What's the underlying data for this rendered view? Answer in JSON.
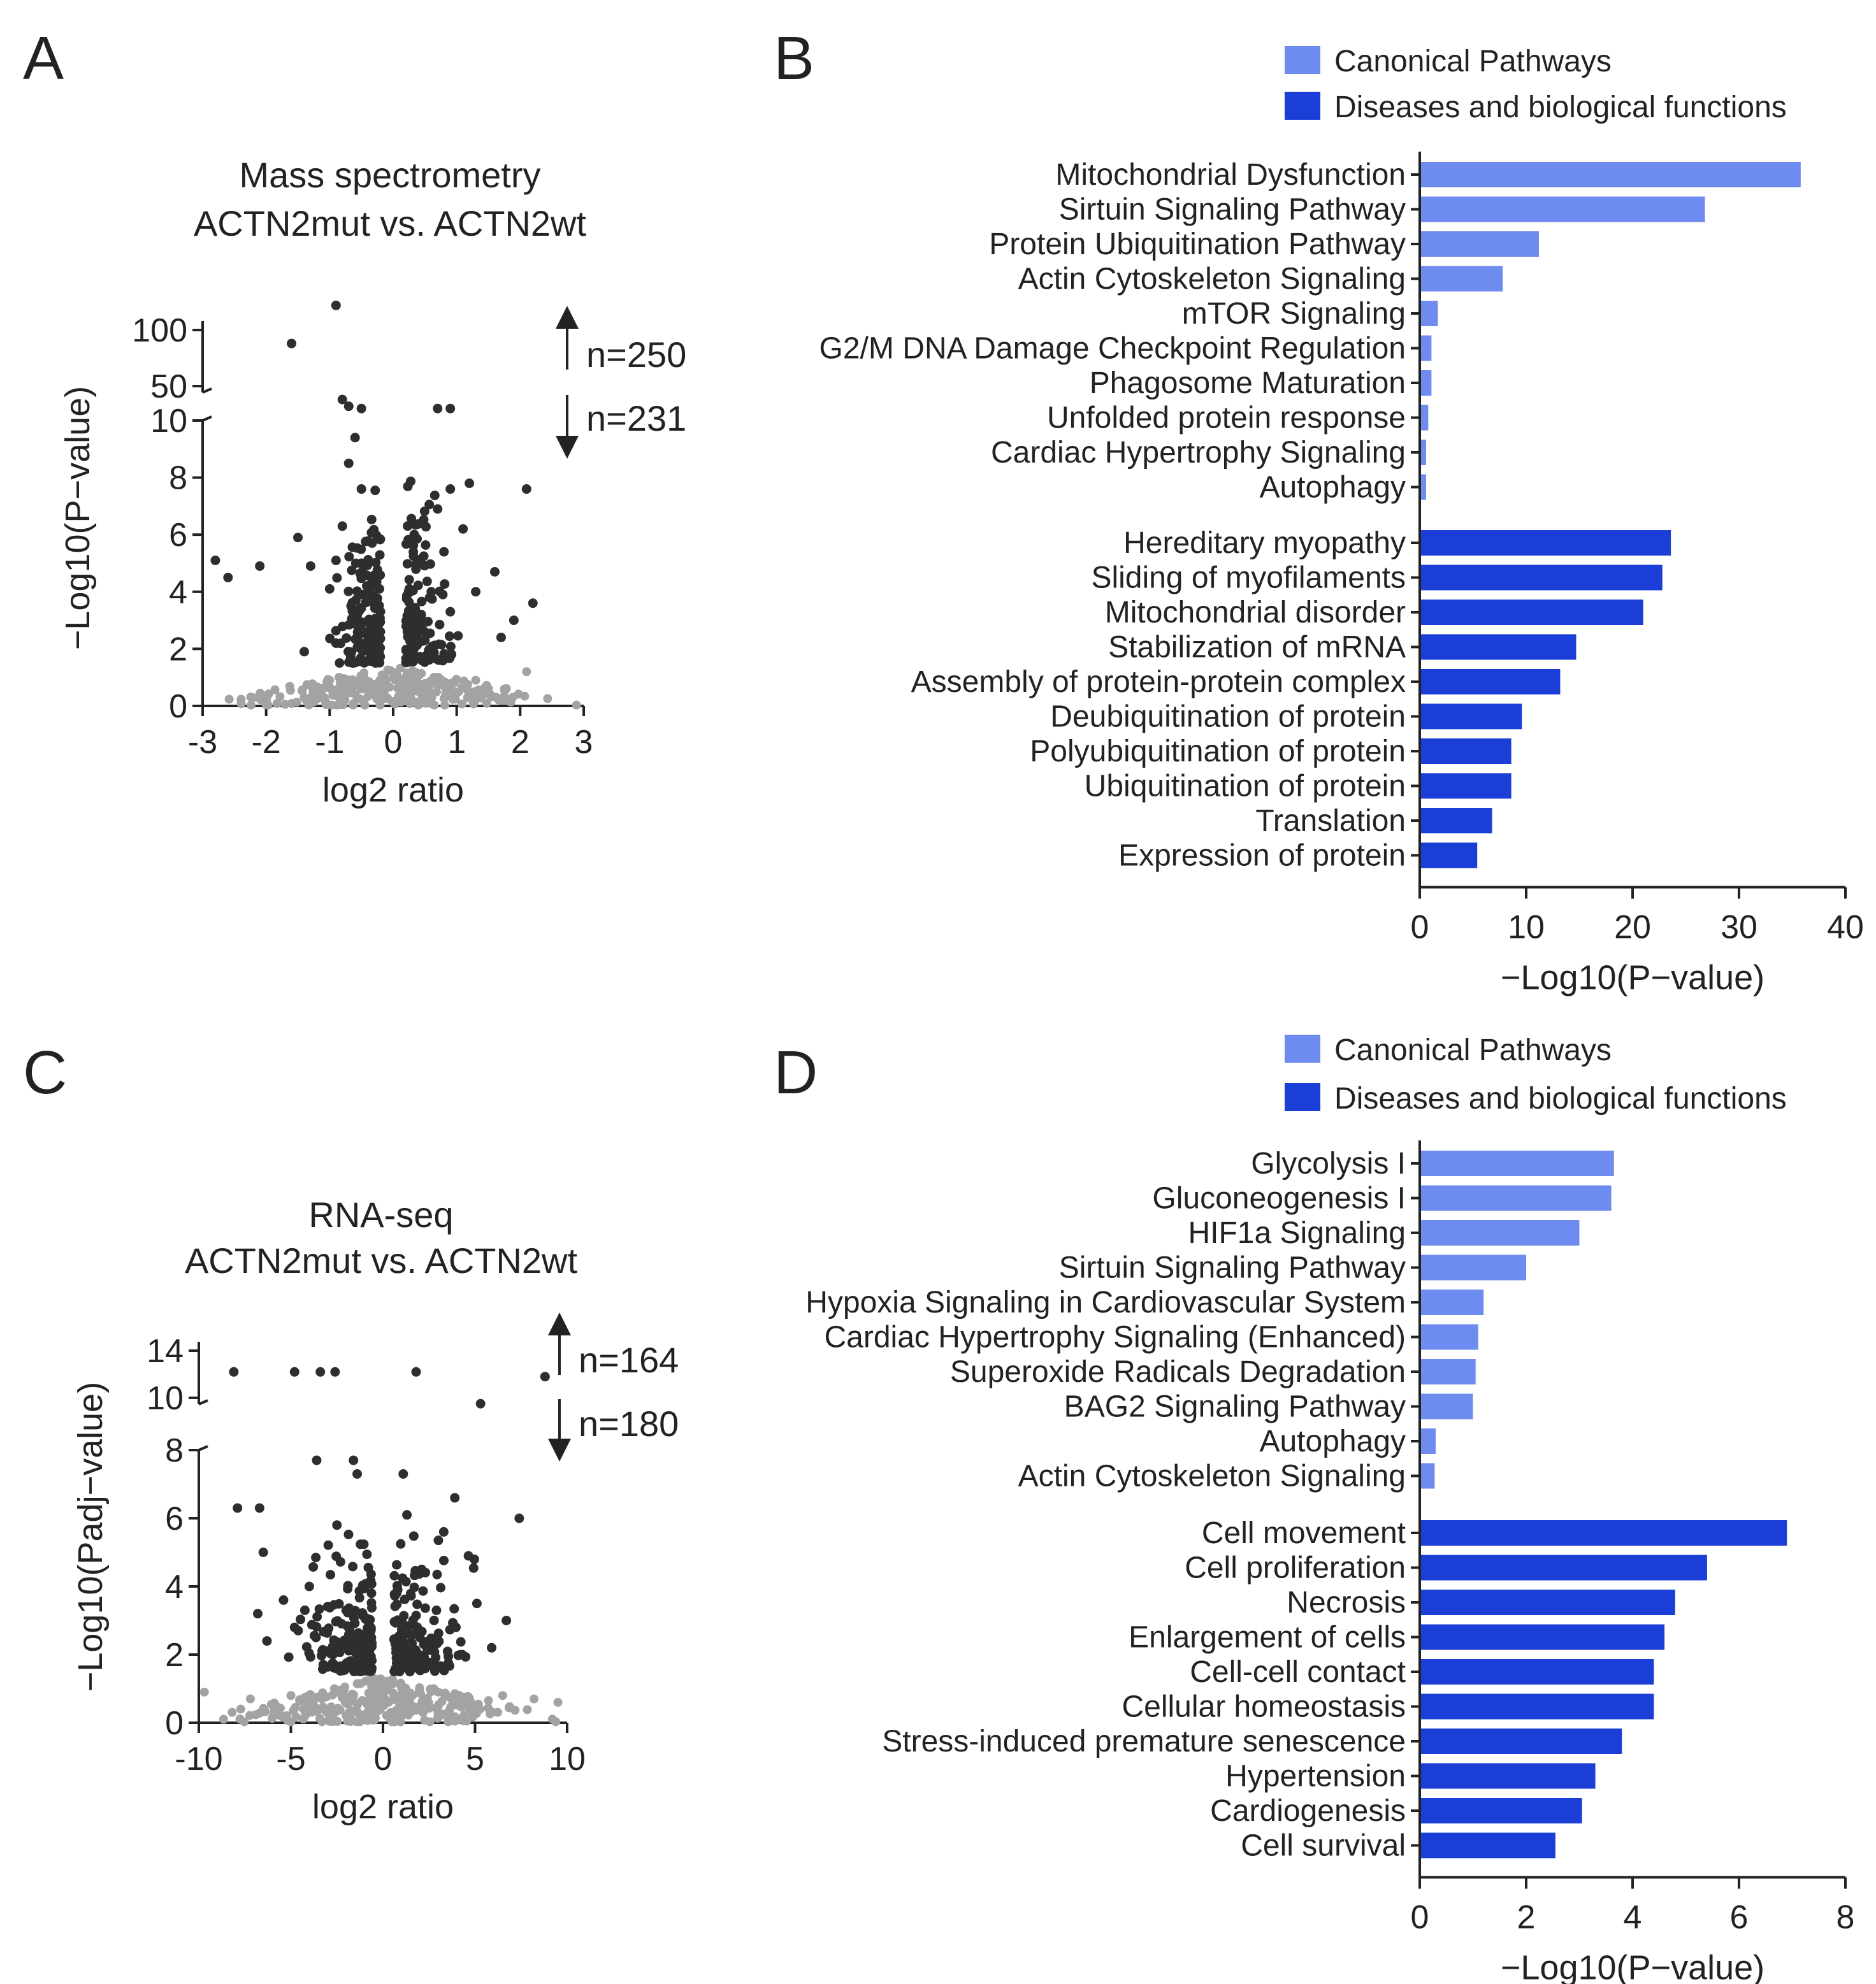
{
  "panels": {
    "A": {
      "letter": "A"
    },
    "B": {
      "letter": "B"
    },
    "C": {
      "letter": "C"
    },
    "D": {
      "letter": "D"
    }
  },
  "chart_data": [
    {
      "id": "A",
      "type": "scatter",
      "title": [
        "Mass spectrometry",
        "ACTN2mut vs. ACTN2wt"
      ],
      "xlabel": "log2 ratio",
      "ylabel": "−Log10(P−value)",
      "xlim": [
        -3,
        3
      ],
      "xticks": [
        "-3",
        "-2",
        "-1",
        "0",
        "1",
        "2",
        "3"
      ],
      "ylim_lower": [
        0,
        10
      ],
      "yticks_lower": [
        "0",
        "2",
        "4",
        "6",
        "8",
        "10"
      ],
      "yticks_upper": [
        "50",
        "100"
      ],
      "n_up": "n=250",
      "n_down": "n=231",
      "significant_points": [
        [
          -2.8,
          5.1
        ],
        [
          -2.6,
          4.5
        ],
        [
          -2.1,
          4.9
        ],
        [
          -1.5,
          5.9
        ],
        [
          -1.3,
          4.9
        ],
        [
          -1.4,
          1.9
        ],
        [
          -0.9,
          2.2
        ],
        [
          -0.8,
          6.3
        ],
        [
          -0.7,
          8.5
        ],
        [
          -0.6,
          9.4
        ],
        [
          -0.5,
          7.6
        ],
        [
          -0.5,
          5.0
        ],
        [
          -0.6,
          3.3
        ],
        [
          -0.4,
          2.6
        ],
        [
          0.5,
          2.3
        ],
        [
          0.6,
          4.0
        ],
        [
          0.7,
          6.9
        ],
        [
          0.9,
          7.6
        ],
        [
          0.8,
          5.4
        ],
        [
          1.1,
          6.2
        ],
        [
          1.3,
          4.0
        ],
        [
          1.2,
          7.8
        ],
        [
          1.6,
          4.7
        ],
        [
          1.7,
          2.4
        ],
        [
          1.9,
          3.0
        ],
        [
          2.1,
          7.6
        ],
        [
          2.2,
          3.6
        ],
        [
          -1.0,
          4.1
        ],
        [
          -0.9,
          5.1
        ],
        [
          0.9,
          3.3
        ]
      ],
      "upper_points": [
        [
          -0.9,
          122
        ],
        [
          -1.6,
          88
        ],
        [
          -0.8,
          38
        ],
        [
          -0.7,
          32
        ],
        [
          -0.5,
          30
        ],
        [
          0.7,
          30
        ],
        [
          0.9,
          30
        ]
      ],
      "nonsignificant_points": [
        [
          -2.0,
          0.05
        ],
        [
          2.1,
          1.2
        ],
        [
          -1.0,
          0.9
        ],
        [
          -0.6,
          0.4
        ],
        [
          0.3,
          0.5
        ],
        [
          0.8,
          0.7
        ],
        [
          1.3,
          0.9
        ],
        [
          1.5,
          0.6
        ]
      ]
    },
    {
      "id": "B",
      "type": "bar",
      "orientation": "horizontal",
      "xlabel": "−Log10(P−value)",
      "xlim": [
        0,
        40
      ],
      "xticks": [
        "0",
        "10",
        "20",
        "30",
        "40"
      ],
      "legend": [
        "Canonical Pathways",
        "Diseases and biological functions"
      ],
      "series": [
        {
          "name": "Canonical Pathways",
          "color": "#6e8cf0",
          "categories": [
            "Mitochondrial Dysfunction",
            "Sirtuin Signaling Pathway",
            "Protein Ubiquitination Pathway",
            "Actin Cytoskeleton Signaling",
            "mTOR Signaling",
            "G2/M DNA Damage Checkpoint Regulation",
            "Phagosome Maturation",
            "Unfolded protein response",
            "Cardiac Hypertrophy Signaling",
            "Autophagy"
          ],
          "values": [
            35.8,
            26.8,
            11.2,
            7.8,
            1.7,
            1.1,
            1.1,
            0.8,
            0.6,
            0.6
          ]
        },
        {
          "name": "Diseases and biological functions",
          "color": "#1b3fd6",
          "categories": [
            "Hereditary myopathy",
            "Sliding of myofilaments",
            "Mitochondrial disorder",
            "Stabilization of mRNA",
            "Assembly of protein-protein complex",
            "Deubiquitination of protein",
            "Polyubiquitination of protein",
            "Ubiquitination of protein",
            "Translation",
            "Expression of protein"
          ],
          "values": [
            23.6,
            22.8,
            21.0,
            14.7,
            13.2,
            9.6,
            8.6,
            8.6,
            6.8,
            5.4
          ]
        }
      ]
    },
    {
      "id": "C",
      "type": "scatter",
      "title": [
        "RNA-seq",
        "ACTN2mut vs. ACTN2wt"
      ],
      "xlabel": "log2 ratio",
      "ylabel": "−Log10(Padj−value)",
      "xlim": [
        -10,
        10
      ],
      "xticks": [
        "-10",
        "-5",
        "0",
        "5",
        "10"
      ],
      "ylim_lower": [
        0,
        8
      ],
      "yticks_lower": [
        "0",
        "2",
        "4",
        "6",
        "8"
      ],
      "yticks_upper": [
        "10",
        "14"
      ],
      "n_up": "n=164",
      "n_down": "n=180",
      "significant_points": [
        [
          -7.9,
          6.3
        ],
        [
          -6.7,
          6.3
        ],
        [
          -6.5,
          5.0
        ],
        [
          -6.8,
          3.2
        ],
        [
          -6.3,
          2.4
        ],
        [
          -5.4,
          3.6
        ],
        [
          -4.8,
          2.8
        ],
        [
          -3.6,
          7.7
        ],
        [
          -2.5,
          5.8
        ],
        [
          -1.6,
          7.7
        ],
        [
          -1.4,
          7.3
        ],
        [
          -2.0,
          3.3
        ],
        [
          -1.1,
          2.2
        ],
        [
          1.1,
          7.3
        ],
        [
          1.3,
          6.1
        ],
        [
          2.1,
          4.5
        ],
        [
          3.3,
          5.6
        ],
        [
          3.9,
          6.6
        ],
        [
          5.1,
          3.5
        ],
        [
          5.9,
          2.2
        ],
        [
          7.4,
          6.0
        ],
        [
          6.7,
          3.0
        ],
        [
          4.3,
          2.0
        ],
        [
          -3.0,
          2.1
        ],
        [
          2.0,
          2.5
        ],
        [
          -4.0,
          4.0
        ],
        [
          0.8,
          3.9
        ]
      ],
      "upper_points": [
        [
          -8.1,
          12.2
        ],
        [
          -4.8,
          12.2
        ],
        [
          -3.4,
          12.2
        ],
        [
          -2.6,
          12.2
        ],
        [
          1.8,
          12.2
        ],
        [
          8.8,
          11.8
        ],
        [
          5.3,
          9.5
        ]
      ],
      "nonsignificant_points": [
        [
          -9.7,
          0.9
        ],
        [
          -7.2,
          0.7
        ],
        [
          -5.0,
          0.8
        ],
        [
          -2.5,
          0.9
        ],
        [
          0.3,
          0.6
        ],
        [
          3.0,
          0.9
        ],
        [
          6.5,
          0.8
        ],
        [
          8.2,
          0.7
        ],
        [
          9.5,
          0.6
        ]
      ]
    },
    {
      "id": "D",
      "type": "bar",
      "orientation": "horizontal",
      "xlabel": "−Log10(P−value)",
      "xlim": [
        0,
        8
      ],
      "xticks": [
        "0",
        "2",
        "4",
        "6",
        "8"
      ],
      "legend": [
        "Canonical Pathways",
        "Diseases and biological functions"
      ],
      "series": [
        {
          "name": "Canonical Pathways",
          "color": "#6e8cf0",
          "categories": [
            "Glycolysis I",
            "Gluconeogenesis I",
            "HIF1a Signaling",
            "Sirtuin Signaling Pathway",
            "Hypoxia Signaling in Cardiovascular System",
            "Cardiac Hypertrophy Signaling (Enhanced)",
            "Superoxide Radicals Degradation",
            "BAG2 Signaling Pathway",
            "Autophagy",
            "Actin Cytoskeleton Signaling"
          ],
          "values": [
            3.65,
            3.6,
            3.0,
            2.0,
            1.2,
            1.1,
            1.05,
            1.0,
            0.3,
            0.28
          ]
        },
        {
          "name": "Diseases and biological functions",
          "color": "#1b3fd6",
          "categories": [
            "Cell movement",
            "Cell proliferation",
            "Necrosis",
            "Enlargement of cells",
            "Cell-cell contact",
            "Cellular homeostasis",
            "Stress-induced premature senescence",
            "Hypertension",
            "Cardiogenesis",
            "Cell survival"
          ],
          "values": [
            6.9,
            5.4,
            4.8,
            4.6,
            4.4,
            4.4,
            3.8,
            3.3,
            3.05,
            2.55
          ]
        }
      ]
    }
  ]
}
